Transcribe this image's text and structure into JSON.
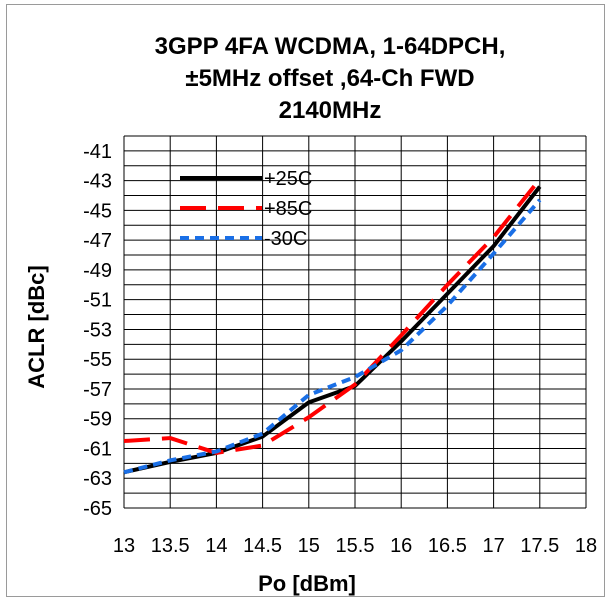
{
  "chart_data": {
    "type": "line",
    "title_lines": [
      "3GPP 4FA  WCDMA, 1-64DPCH,",
      "±5MHz offset ,64-Ch FWD",
      "2140MHz"
    ],
    "xlabel": "Po [dBm]",
    "ylabel": "ACLR [dBc]",
    "xlim": [
      13,
      18
    ],
    "ylim": [
      -65,
      -40
    ],
    "xticks": [
      "13",
      "13.5",
      "14",
      "14.5",
      "15",
      "15.5",
      "16",
      "16.5",
      "17",
      "17.5",
      "18"
    ],
    "yticks": [
      "-41",
      "-43",
      "-45",
      "-47",
      "-49",
      "-51",
      "-53",
      "-55",
      "-57",
      "-59",
      "-61",
      "-63",
      "-65"
    ],
    "grid": true,
    "legend_position": "top-left",
    "series": [
      {
        "name": "+25C",
        "color": "#000000",
        "dash": "solid",
        "x": [
          13,
          13.5,
          14,
          14.5,
          15,
          15.5,
          16,
          16.5,
          17,
          17.5
        ],
        "y": [
          -62.6,
          -61.9,
          -61.3,
          -60.2,
          -57.9,
          -56.8,
          -53.8,
          -50.6,
          -47.4,
          -43.4
        ]
      },
      {
        "name": "+85C",
        "color": "#ff0000",
        "dash": "long",
        "x": [
          13,
          13.5,
          14,
          14.5,
          15,
          15.5,
          16,
          16.5,
          17,
          17.5
        ],
        "y": [
          -60.5,
          -60.3,
          -61.3,
          -60.8,
          -58.9,
          -56.7,
          -53.4,
          -50.0,
          -46.8,
          -42.9
        ]
      },
      {
        "name": "-30C",
        "color": "#1a6fe6",
        "dash": "short",
        "x": [
          13,
          13.5,
          14,
          14.5,
          15,
          15.5,
          16,
          16.5,
          17,
          17.5
        ],
        "y": [
          -62.6,
          -61.8,
          -61.2,
          -60.0,
          -57.4,
          -56.2,
          -54.4,
          -51.4,
          -47.9,
          -44.3
        ]
      }
    ]
  }
}
